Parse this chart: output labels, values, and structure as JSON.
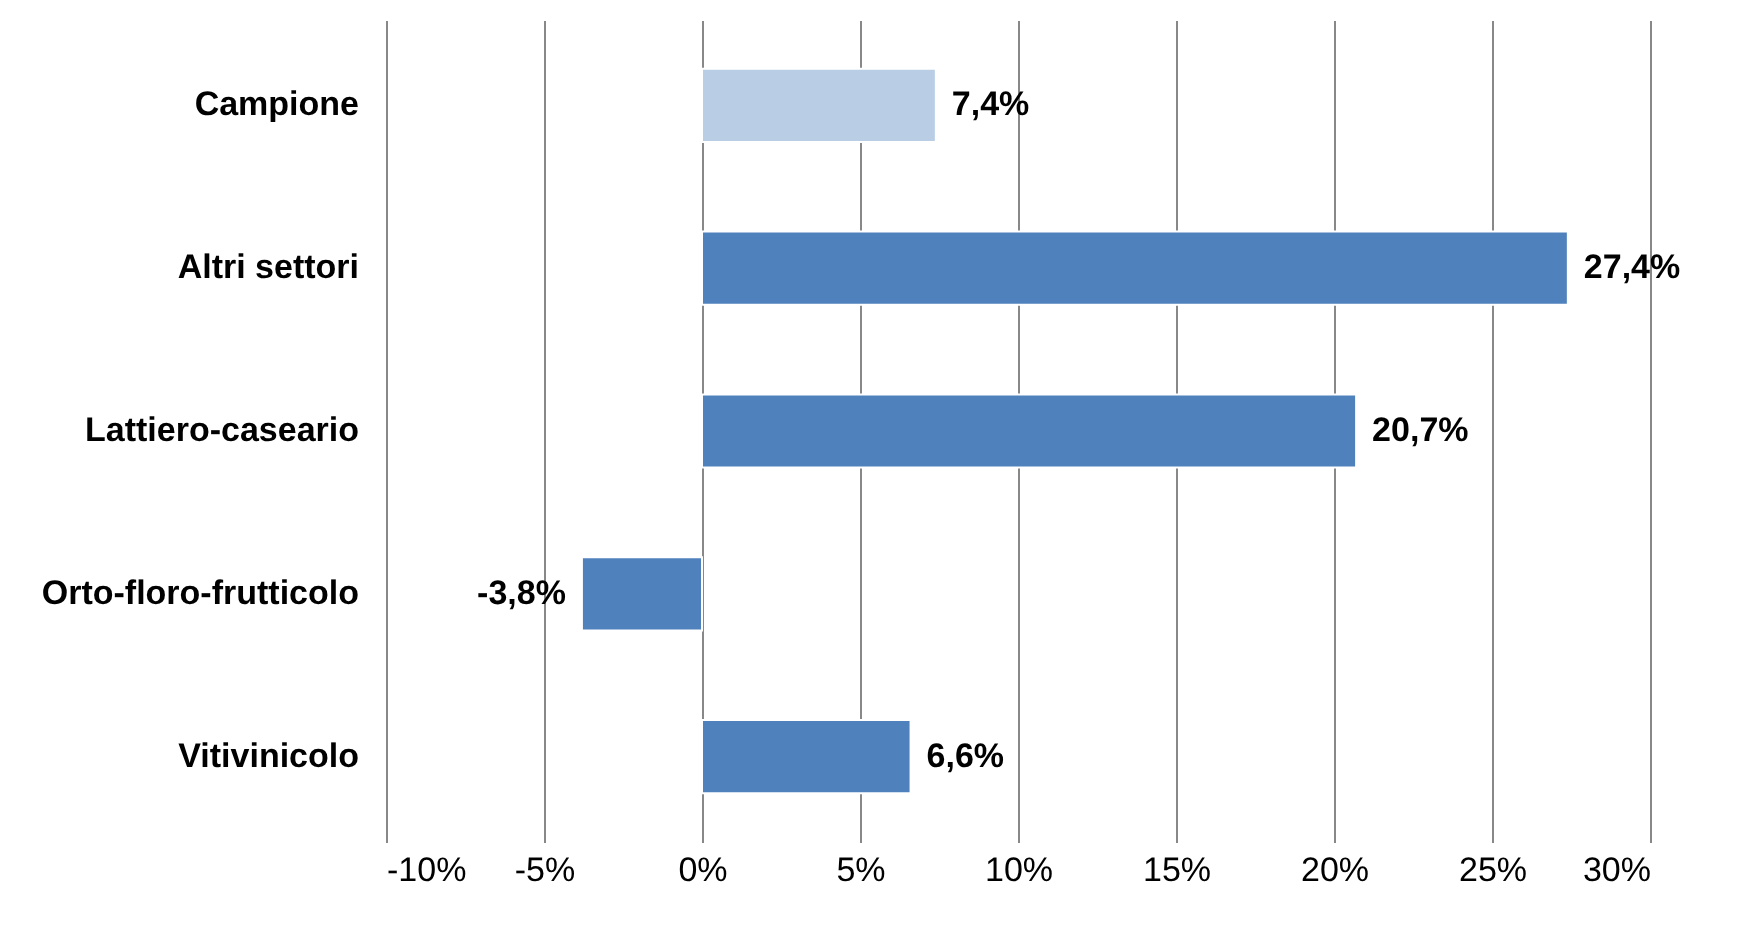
{
  "chart_data": {
    "type": "bar",
    "orientation": "horizontal",
    "categories": [
      "Campione",
      "Altri settori",
      "Lattiero-caseario",
      "Orto-floro-frutticolo",
      "Vitivinicolo"
    ],
    "values": [
      7.4,
      27.4,
      20.7,
      -3.8,
      6.6
    ],
    "colors": [
      "#b9cde5",
      "#4f81bd",
      "#4f81bd",
      "#4f81bd",
      "#4f81bd"
    ],
    "value_labels": [
      "7,4%",
      "27,4%",
      "20,7%",
      "-3,8%",
      "6,6%"
    ],
    "xlim": [
      -10,
      30
    ],
    "xticks": [
      {
        "value": -10,
        "label": "-10%"
      },
      {
        "value": -5,
        "label": "-5%"
      },
      {
        "value": 0,
        "label": "0%"
      },
      {
        "value": 5,
        "label": "5%"
      },
      {
        "value": 10,
        "label": "10%"
      },
      {
        "value": 15,
        "label": "15%"
      },
      {
        "value": 20,
        "label": "20%"
      },
      {
        "value": 25,
        "label": "25%"
      },
      {
        "value": 30,
        "label": "30%"
      }
    ],
    "grid": "x"
  }
}
